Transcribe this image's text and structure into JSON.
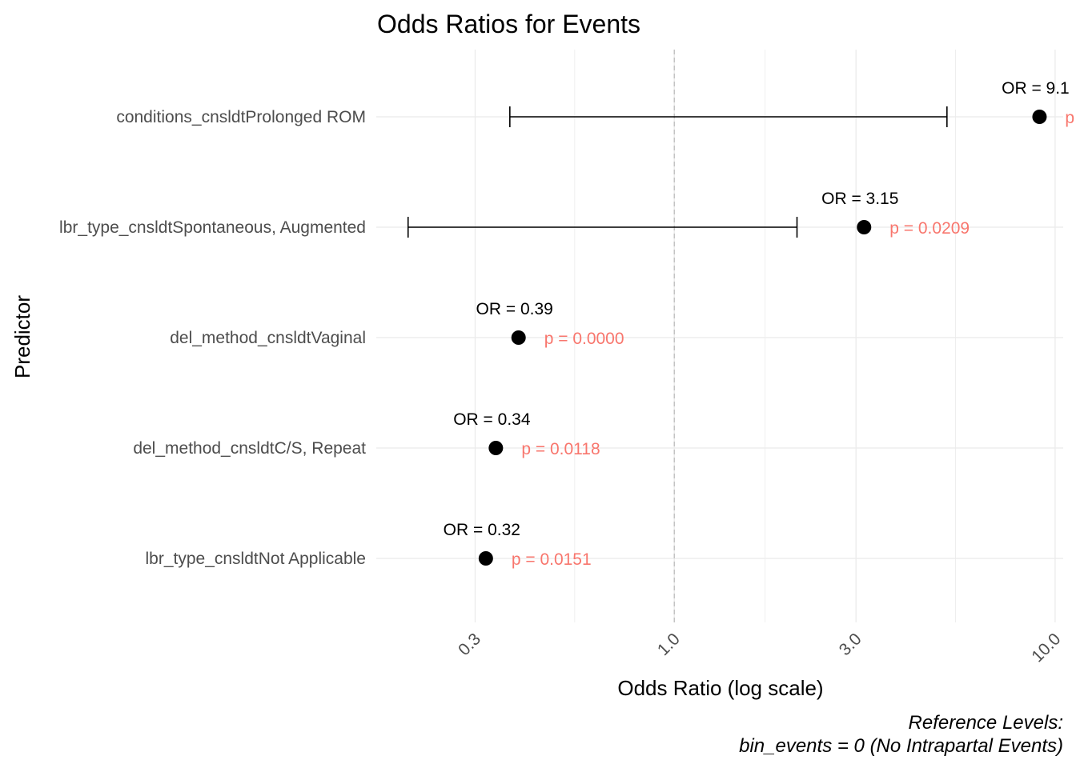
{
  "chart_data": {
    "type": "scatter",
    "title": "Odds Ratios for Events",
    "xlabel": "Odds Ratio (log scale)",
    "ylabel": "Predictor",
    "x_scale": "log",
    "xlim": [
      0.165,
      10.5
    ],
    "x_ticks": [
      0.3,
      1.0,
      3.0,
      10.0
    ],
    "x_tick_labels": [
      "0.3",
      "1.0",
      "3.0",
      "10.0"
    ],
    "reference_line": 1.0,
    "grid": true,
    "categories": [
      "conditions_cnsldtProlonged ROM",
      "lbr_type_cnsldtSpontaneous, Augmented",
      "del_method_cnsldtVaginal",
      "del_method_cnsldtC/S, Repeat",
      "lbr_type_cnsldtNot Applicable"
    ],
    "points": [
      {
        "predictor": "conditions_cnsldtProlonged ROM",
        "or": 9.1,
        "ci_low": 0.37,
        "ci_high": 5.2,
        "or_label": "OR = 9.1",
        "p_label": "p"
      },
      {
        "predictor": "lbr_type_cnsldtSpontaneous, Augmented",
        "or": 3.15,
        "ci_low": 0.2,
        "ci_high": 2.1,
        "or_label": "OR = 3.15",
        "p_label": "p = 0.0209"
      },
      {
        "predictor": "del_method_cnsldtVaginal",
        "or": 0.39,
        "or_label": "OR = 0.39",
        "p_label": "p = 0.0000"
      },
      {
        "predictor": "del_method_cnsldtC/S, Repeat",
        "or": 0.34,
        "or_label": "OR = 0.34",
        "p_label": "p = 0.0118"
      },
      {
        "predictor": "lbr_type_cnsldtNot Applicable",
        "or": 0.32,
        "or_label": "OR = 0.32",
        "p_label": "p = 0.0151"
      }
    ],
    "caption_lines": [
      "Reference Levels:",
      "bin_events = 0 (No Intrapartal Events)"
    ]
  },
  "colors": {
    "point": "#000000",
    "p_label": "#f8766d",
    "grid": "#ebebeb",
    "reference_line": "#bdbdbd"
  }
}
